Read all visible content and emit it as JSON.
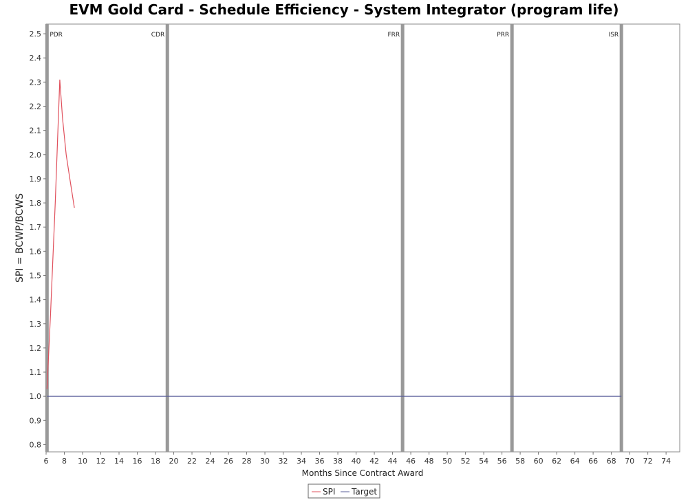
{
  "chart_data": {
    "type": "line",
    "title": "EVM Gold Card - Schedule Efficiency - System Integrator (program life)",
    "xlabel": "Months Since Contract Award",
    "ylabel": "SPI = BCWP/BCWS",
    "xlim": [
      6,
      75.5
    ],
    "ylim": [
      0.77,
      2.54
    ],
    "xticks": [
      6,
      8,
      10,
      12,
      14,
      16,
      18,
      20,
      22,
      24,
      26,
      28,
      30,
      32,
      34,
      36,
      38,
      40,
      42,
      44,
      46,
      48,
      50,
      52,
      54,
      56,
      58,
      60,
      62,
      64,
      66,
      68,
      70,
      72,
      74
    ],
    "yticks": [
      0.8,
      0.9,
      1.0,
      1.1,
      1.2,
      1.3,
      1.4,
      1.5,
      1.6,
      1.7,
      1.8,
      1.9,
      2.0,
      2.1,
      2.2,
      2.3,
      2.4,
      2.5
    ],
    "grid": false,
    "legend_position": "bottom-center",
    "milestones": [
      {
        "label": "PDR",
        "x": 6.1
      },
      {
        "label": "CDR",
        "x": 19.3
      },
      {
        "label": "FRR",
        "x": 45.1
      },
      {
        "label": "PRR",
        "x": 57.1
      },
      {
        "label": "ISR",
        "x": 69.1
      }
    ],
    "series": [
      {
        "name": "SPI",
        "color": "#e0505c",
        "x": [
          6.1,
          6.5,
          7.0,
          7.5,
          7.8,
          8.2,
          8.6,
          9.1
        ],
        "y": [
          1.03,
          1.35,
          1.8,
          2.31,
          2.15,
          2.0,
          1.9,
          1.78
        ]
      },
      {
        "name": "Target",
        "color": "#5a5f9a",
        "x": [
          6.1,
          69.1
        ],
        "y": [
          1.0,
          1.0
        ]
      }
    ]
  }
}
